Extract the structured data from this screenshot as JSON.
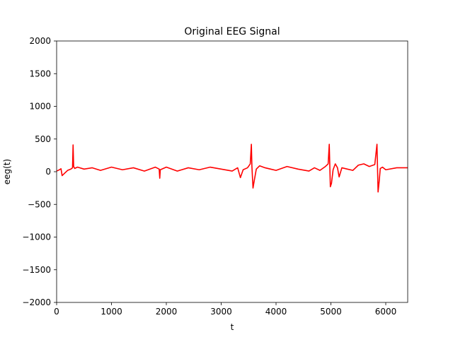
{
  "chart_data": {
    "type": "line",
    "title": "Original EEG Signal",
    "xlabel": "t",
    "ylabel": "eeg(t)",
    "xlim": [
      0,
      6400
    ],
    "ylim": [
      -2000,
      2000
    ],
    "xticks": [
      0,
      1000,
      2000,
      3000,
      4000,
      5000,
      6000
    ],
    "yticks": [
      -2000,
      -1500,
      -1000,
      -500,
      0,
      500,
      1000,
      1500,
      2000
    ],
    "xtick_labels": [
      "0",
      "1000",
      "2000",
      "3000",
      "4000",
      "5000",
      "6000"
    ],
    "ytick_labels": [
      "−2000",
      "−1500",
      "−1000",
      "−500",
      "0",
      "500",
      "1000",
      "1500",
      "2000"
    ],
    "grid": false,
    "legend": "none",
    "series": [
      {
        "color": "#ff0000",
        "x": [
          0,
          40,
          80,
          100,
          150,
          200,
          260,
          290,
          300,
          310,
          330,
          380,
          500,
          650,
          800,
          1000,
          1200,
          1400,
          1600,
          1800,
          1870,
          1880,
          1890,
          2000,
          2200,
          2400,
          2600,
          2800,
          3000,
          3200,
          3300,
          3350,
          3400,
          3480,
          3530,
          3550,
          3560,
          3580,
          3600,
          3640,
          3700,
          3800,
          4000,
          4200,
          4400,
          4600,
          4700,
          4800,
          4900,
          4950,
          4970,
          4990,
          5010,
          5040,
          5080,
          5120,
          5150,
          5200,
          5300,
          5400,
          5500,
          5600,
          5700,
          5800,
          5840,
          5860,
          5880,
          5900,
          5940,
          6000,
          6200,
          6400
        ],
        "y": [
          10,
          25,
          45,
          -60,
          -20,
          20,
          40,
          60,
          410,
          80,
          50,
          70,
          40,
          60,
          20,
          70,
          30,
          60,
          10,
          70,
          40,
          -100,
          30,
          70,
          10,
          60,
          30,
          70,
          40,
          10,
          60,
          -90,
          30,
          60,
          120,
          420,
          80,
          -250,
          -150,
          40,
          90,
          60,
          20,
          80,
          40,
          10,
          60,
          20,
          80,
          120,
          420,
          -230,
          -180,
          30,
          120,
          60,
          -80,
          60,
          40,
          20,
          100,
          120,
          80,
          110,
          420,
          -310,
          -150,
          50,
          70,
          30,
          60,
          60
        ]
      }
    ]
  }
}
